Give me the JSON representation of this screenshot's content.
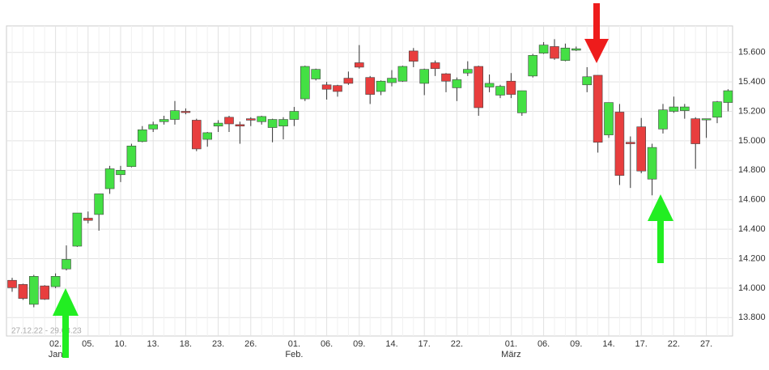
{
  "chart_data": {
    "type": "candlestick",
    "date_range": "27.12.22 - 29.03.23",
    "categories": [
      null,
      null,
      null,
      null,
      "02.",
      null,
      null,
      "05.",
      null,
      null,
      "10.",
      null,
      null,
      "13.",
      null,
      null,
      "18.",
      null,
      null,
      "23.",
      null,
      null,
      "26.",
      null,
      null,
      null,
      "01.",
      null,
      null,
      "06.",
      null,
      null,
      "09.",
      null,
      null,
      "14.",
      null,
      null,
      "17.",
      null,
      null,
      "22.",
      null,
      null,
      null,
      null,
      "01.",
      null,
      null,
      "06.",
      null,
      null,
      "09.",
      null,
      null,
      "14.",
      null,
      null,
      "17.",
      null,
      null,
      "22.",
      null,
      null,
      "27.",
      null,
      null
    ],
    "months": [
      null,
      null,
      null,
      null,
      "Jan",
      null,
      null,
      null,
      null,
      null,
      null,
      null,
      null,
      null,
      null,
      null,
      null,
      null,
      null,
      null,
      null,
      null,
      null,
      null,
      null,
      null,
      "Feb.",
      null,
      null,
      null,
      null,
      null,
      null,
      null,
      null,
      null,
      null,
      null,
      null,
      null,
      null,
      null,
      null,
      null,
      null,
      null,
      "März",
      null,
      null,
      null,
      null,
      null,
      null,
      null,
      null,
      null,
      null,
      null,
      null,
      null,
      null,
      null,
      null,
      null,
      null,
      null,
      null
    ],
    "open": [
      14053,
      14025,
      13890,
      14015,
      14010,
      14130,
      14285,
      14475,
      14500,
      14675,
      14770,
      14825,
      14995,
      15080,
      15130,
      15145,
      15200,
      15140,
      15010,
      15100,
      15160,
      15110,
      15150,
      15130,
      15090,
      15100,
      15145,
      15285,
      15420,
      15380,
      15375,
      15425,
      15530,
      15430,
      15335,
      15395,
      15405,
      15610,
      15390,
      15530,
      15455,
      15360,
      15460,
      15505,
      15365,
      15310,
      15405,
      15190,
      15440,
      15595,
      15640,
      15545,
      15615,
      15380,
      15445,
      15040,
      15195,
      14990,
      15095,
      14740,
      15080,
      15200,
      15205,
      15150,
      15145,
      15160,
      15260
    ],
    "high": [
      14070,
      14030,
      14090,
      14020,
      14100,
      14290,
      14510,
      14520,
      14640,
      14830,
      14830,
      14980,
      15100,
      15130,
      15170,
      15270,
      15220,
      15150,
      15060,
      15140,
      15170,
      15130,
      15160,
      15170,
      15150,
      15160,
      15230,
      15510,
      15490,
      15400,
      15380,
      15470,
      15650,
      15440,
      15410,
      15480,
      15510,
      15630,
      15490,
      15545,
      15460,
      15430,
      15540,
      15510,
      15450,
      15380,
      15460,
      15340,
      15590,
      15670,
      15690,
      15660,
      15640,
      15500,
      15445,
      15260,
      15250,
      15030,
      15155,
      14980,
      15250,
      15300,
      15250,
      15160,
      15150,
      15270,
      15350
    ],
    "low": [
      13975,
      13920,
      13870,
      13920,
      14000,
      14120,
      14280,
      14440,
      14390,
      14640,
      14720,
      14820,
      14990,
      15060,
      15110,
      15110,
      15180,
      14930,
      14960,
      15060,
      15060,
      14980,
      15100,
      15110,
      14990,
      15010,
      15100,
      15270,
      15410,
      15280,
      15300,
      15380,
      15490,
      15250,
      15310,
      15370,
      15400,
      15500,
      15310,
      15440,
      15330,
      15270,
      15440,
      15170,
      15330,
      15290,
      15290,
      15170,
      15430,
      15590,
      15550,
      15540,
      15610,
      15330,
      14920,
      15020,
      14700,
      14680,
      14780,
      14630,
      15050,
      15190,
      15150,
      14810,
      15020,
      15120,
      15200
    ],
    "close": [
      14003,
      13930,
      14080,
      13925,
      14080,
      14195,
      14510,
      14460,
      14640,
      14810,
      14800,
      14965,
      15075,
      15110,
      15145,
      15205,
      15195,
      14945,
      15055,
      15120,
      15115,
      15100,
      15140,
      15165,
      15145,
      15145,
      15200,
      15505,
      15485,
      15350,
      15335,
      15390,
      15500,
      15315,
      15405,
      15425,
      15505,
      15540,
      15485,
      15490,
      15405,
      15415,
      15485,
      15225,
      15390,
      15370,
      15315,
      15340,
      15580,
      15650,
      15560,
      15630,
      15625,
      15435,
      14990,
      15260,
      14765,
      14980,
      14795,
      14955,
      15210,
      15230,
      15230,
      14980,
      15150,
      15265,
      15340
    ],
    "up_color": "#44e044",
    "down_color": "#e83e3e",
    "ylim": [
      13675,
      15780
    ],
    "yticks": [
      {
        "value": 13800,
        "label": "13.800"
      },
      {
        "value": 14000,
        "label": "14.000"
      },
      {
        "value": 14200,
        "label": "14.200"
      },
      {
        "value": 14400,
        "label": "14.400"
      },
      {
        "value": 14600,
        "label": "14.600"
      },
      {
        "value": 14800,
        "label": "14.800"
      },
      {
        "value": 15000,
        "label": "15.000"
      },
      {
        "value": 15200,
        "label": "15.200"
      },
      {
        "value": 15400,
        "label": "15.400"
      },
      {
        "value": 15600,
        "label": "15.600"
      }
    ],
    "grid": true
  }
}
